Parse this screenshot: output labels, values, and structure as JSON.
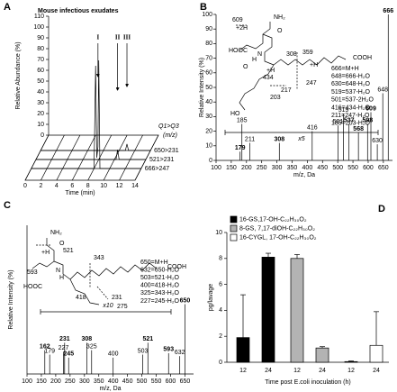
{
  "chart_data": [
    {
      "type": "chromatogram",
      "panel": "A",
      "title": "Mouse infectious exudates",
      "ylabel": "Relative Abundance (%)",
      "xlabel": "Time (min)",
      "xlim": [
        0,
        14
      ],
      "xticks": [
        0,
        2,
        4,
        6,
        8,
        10,
        12,
        14
      ],
      "ylim": [
        0,
        110
      ],
      "yticks": [
        0,
        10,
        20,
        30,
        40,
        50,
        60,
        70,
        80,
        90,
        100,
        110
      ],
      "legend_title": [
        "Q1>Q3",
        "(m/z)"
      ],
      "series": [
        {
          "name": "650>231",
          "color": "#000000",
          "x": [
            0,
            10.8,
            11.0,
            11.2,
            14
          ],
          "values": [
            0,
            0,
            6,
            0,
            0
          ]
        },
        {
          "name": "521>231",
          "color": "#000000",
          "x": [
            0,
            10.2,
            10.4,
            10.6,
            14
          ],
          "values": [
            0,
            0,
            9,
            0,
            0
          ]
        },
        {
          "name": "666>247",
          "color": "#000000",
          "x": [
            0,
            8.0,
            8.2,
            8.35,
            8.5,
            8.6,
            8.75,
            14
          ],
          "values": [
            0,
            0,
            95,
            10,
            20,
            100,
            0,
            0
          ]
        }
      ],
      "annotations": [
        {
          "text": "I",
          "x": 8.5
        },
        {
          "text": "II",
          "x": 10.4
        },
        {
          "text": "III",
          "x": 11.0
        }
      ]
    },
    {
      "type": "spectrum",
      "panel": "B",
      "ylabel": "Relative Intensity (%)",
      "xlabel": "m/z, Da",
      "xlim": [
        100,
        680
      ],
      "xticks": [
        100,
        150,
        200,
        250,
        300,
        350,
        400,
        450,
        500,
        550,
        600,
        650
      ],
      "ylim": [
        0,
        100
      ],
      "yticks": [
        0,
        10,
        20,
        30,
        40,
        50,
        60,
        70,
        80,
        90,
        100
      ],
      "peaks": {
        "x": [
          179,
          185,
          211,
          308,
          416,
          501,
          519,
          537,
          568,
          598,
          609,
          630,
          648,
          666
        ],
        "values": [
          6,
          25,
          12,
          12,
          20,
          24,
          32,
          25,
          19,
          25,
          33,
          11,
          46,
          100
        ]
      },
      "scale_label": "x5",
      "fragments": [
        "666=M+H",
        "648=666-H₂O",
        "630=648-H₂O",
        "519=537-H₂O",
        "501=537-2H₂O",
        "416=434-H₂O",
        "211=247-H₂O",
        "185=203-H₂O"
      ],
      "structure_labels": [
        "NH₂",
        "O",
        "609",
        "+2H",
        "HOOC",
        "N",
        "H",
        "O",
        "+H",
        "434",
        "308",
        "359",
        "+H",
        "247",
        "217",
        "203",
        "HO",
        "COOH"
      ]
    },
    {
      "type": "spectrum",
      "panel": "C",
      "ylabel": "Relative Intensity (%)",
      "xlabel": "m/z, Da",
      "xlim": [
        100,
        680
      ],
      "xticks": [
        100,
        150,
        200,
        250,
        300,
        350,
        400,
        450,
        500,
        550,
        600,
        650
      ],
      "ylim": [
        0,
        100
      ],
      "peaks": {
        "x": [
          162,
          179,
          227,
          231,
          245,
          308,
          325,
          400,
          503,
          521,
          593,
          632,
          650
        ],
        "values": [
          16,
          13,
          15,
          21,
          11,
          21,
          16,
          11,
          13,
          21,
          14,
          12,
          47
        ]
      },
      "scale_label": "x10",
      "fragments": [
        "650=M+H",
        "632=650-H₂O",
        "503=521-H₂O",
        "400=418-H₂O",
        "325=343-H₂O",
        "227=245-H₂O"
      ],
      "structure_labels": [
        "NH₂",
        "O",
        "593",
        "+H",
        "521",
        "HOOC",
        "N",
        "H",
        "418",
        "343",
        "231",
        "275",
        "COOH"
      ]
    },
    {
      "type": "bar",
      "panel": "D",
      "ylabel": "pg/lavage",
      "xlabel": "Time post E.coli inoculation (h)",
      "categories": [
        "12",
        "24"
      ],
      "ylim": [
        0,
        10
      ],
      "yticks": [
        0,
        2,
        4,
        6,
        8,
        10
      ],
      "series": [
        {
          "name": "16-GS,17-OH-C₂₂H₃₀O₂",
          "color": "#000000",
          "values": [
            1.9,
            8.1
          ],
          "errors": [
            3.3,
            0.3
          ]
        },
        {
          "name": "8-GS, 7,17-diOH-C₂₂H₃₀O₂",
          "color": "#b3b3b3",
          "values": [
            8.0,
            1.1
          ],
          "errors": [
            0.3,
            0.1
          ]
        },
        {
          "name": "16-CYGL, 17-OH-C₂₂H₃₀O₂",
          "color": "#ffffff",
          "values": [
            0.05,
            1.3
          ],
          "errors": [
            0.05,
            2.6
          ]
        }
      ]
    }
  ]
}
